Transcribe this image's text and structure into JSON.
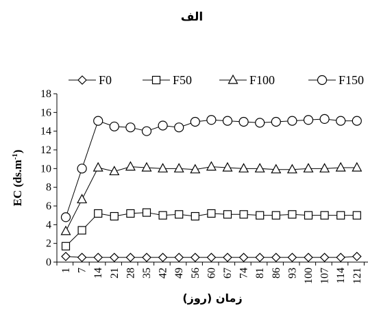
{
  "chart_data": {
    "type": "line",
    "title": "الف",
    "xlabel": "زمان (روز)",
    "ylabel": "EC (ds.m-1)",
    "ylabel_main": "EC (ds.m",
    "ylabel_sup": "-1",
    "ylabel_close": ")",
    "ylim": [
      0,
      18
    ],
    "yticks": [
      0,
      2,
      4,
      6,
      8,
      10,
      12,
      14,
      16,
      18
    ],
    "grid": false,
    "legend_position": "top",
    "categories": [
      "1",
      "7",
      "14",
      "21",
      "28",
      "35",
      "42",
      "49",
      "56",
      "60",
      "67",
      "74",
      "81",
      "86",
      "93",
      "100",
      "107",
      "114",
      "121"
    ],
    "series": [
      {
        "name": "F0",
        "marker": "diamond",
        "values": [
          0.6,
          0.5,
          0.5,
          0.5,
          0.5,
          0.5,
          0.5,
          0.5,
          0.5,
          0.5,
          0.5,
          0.5,
          0.5,
          0.5,
          0.5,
          0.5,
          0.5,
          0.5,
          0.6
        ]
      },
      {
        "name": "F50",
        "marker": "square",
        "values": [
          1.7,
          3.4,
          5.2,
          4.9,
          5.2,
          5.3,
          5.0,
          5.1,
          4.9,
          5.2,
          5.1,
          5.1,
          5.0,
          5.0,
          5.1,
          5.0,
          5.0,
          5.0,
          5.0
        ]
      },
      {
        "name": "F100",
        "marker": "triangle",
        "values": [
          3.3,
          6.7,
          10.1,
          9.7,
          10.2,
          10.1,
          10.0,
          10.0,
          9.9,
          10.2,
          10.1,
          10.0,
          10.0,
          9.9,
          9.9,
          10.0,
          10.0,
          10.1,
          10.1
        ]
      },
      {
        "name": "F150",
        "marker": "circle",
        "values": [
          4.8,
          10.0,
          15.1,
          14.5,
          14.4,
          14.0,
          14.6,
          14.4,
          15.0,
          15.2,
          15.1,
          15.0,
          14.9,
          15.0,
          15.1,
          15.2,
          15.3,
          15.1,
          15.1
        ]
      }
    ]
  }
}
